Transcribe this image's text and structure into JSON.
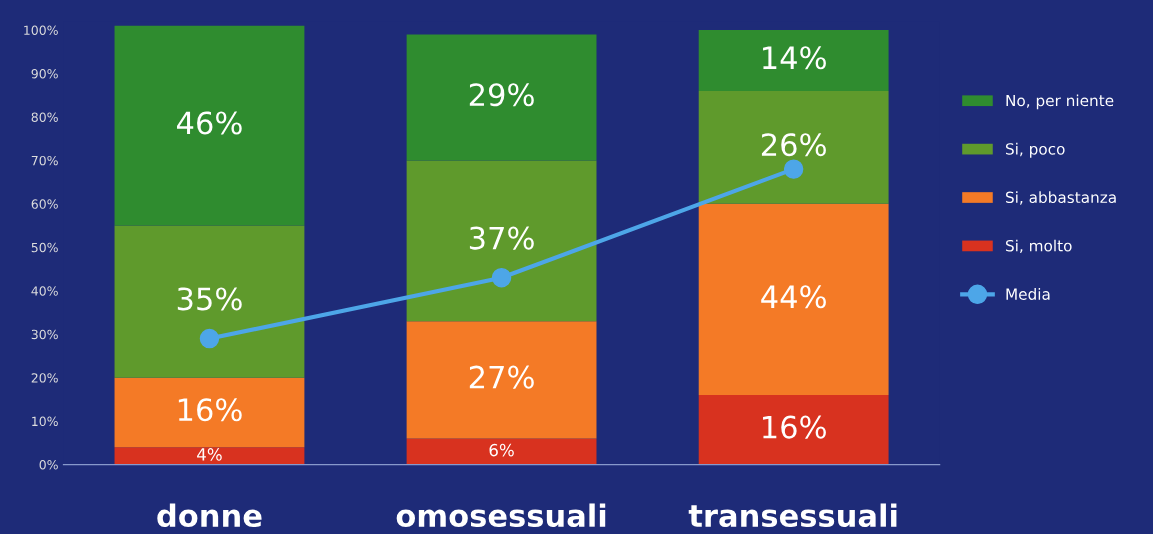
{
  "chart_data": {
    "type": "bar",
    "stacked": true,
    "categories": [
      "donne",
      "omosessuali",
      "transessuali"
    ],
    "series": [
      {
        "name": "Si, molto",
        "color": "#d8321f",
        "values": [
          4,
          6,
          16
        ],
        "value_labels": [
          "4%",
          "6%",
          "16%"
        ]
      },
      {
        "name": "Si, abbastanza",
        "color": "#f47a26",
        "values": [
          16,
          27,
          44
        ],
        "value_labels": [
          "16%",
          "27%",
          "44%"
        ]
      },
      {
        "name": "Si, poco",
        "color": "#5f9a2c",
        "values": [
          35,
          37,
          26
        ],
        "value_labels": [
          "35%",
          "37%",
          "26%"
        ]
      },
      {
        "name": "No, per niente",
        "color": "#2f8c2f",
        "values": [
          46,
          29,
          14
        ],
        "value_labels": [
          "46%",
          "29%",
          "14%"
        ]
      },
      {
        "name": "Media",
        "type": "line",
        "color": "#4da6e8",
        "values": [
          29,
          43,
          68
        ],
        "marker": "circle"
      }
    ],
    "ylim": [
      0,
      102
    ],
    "yticks": [
      {
        "value": 0,
        "label": "0%"
      },
      {
        "value": 10,
        "label": "10%"
      },
      {
        "value": 20,
        "label": "20%"
      },
      {
        "value": 30,
        "label": "30%"
      },
      {
        "value": 40,
        "label": "40%"
      },
      {
        "value": 50,
        "label": "50%"
      },
      {
        "value": 60,
        "label": "60%"
      },
      {
        "value": 70,
        "label": "70%"
      },
      {
        "value": 80,
        "label": "80%"
      },
      {
        "value": 90,
        "label": "90%"
      },
      {
        "value": 100,
        "label": "100%"
      }
    ],
    "grid": false,
    "legend": "right"
  }
}
